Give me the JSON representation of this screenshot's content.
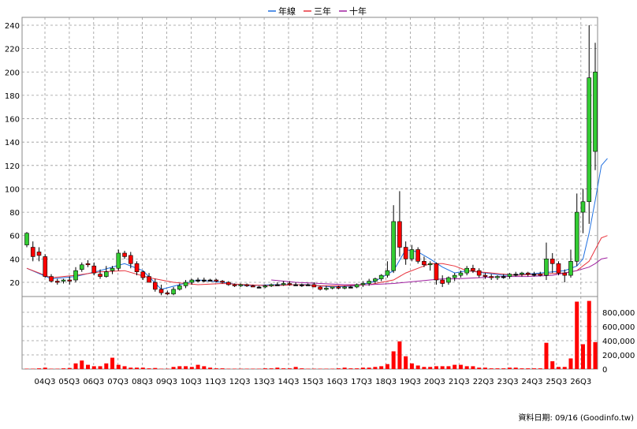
{
  "legend": {
    "items": [
      {
        "label": "年線",
        "color": "#1f6fe0"
      },
      {
        "label": "三年",
        "color": "#e8323c"
      },
      {
        "label": "十年",
        "color": "#a020a0"
      }
    ]
  },
  "footer": {
    "text": "資料日期: 09/16  (Goodinfo.tw)"
  },
  "colors": {
    "up_candle": "#33cc33",
    "down_candle": "#ff0000",
    "neutral_candle": "#000000",
    "volume_bar": "#ff0000",
    "grid": "#888888"
  },
  "chart_data": {
    "type": "candlestick",
    "x_tick_labels": [
      "04Q3",
      "05Q3",
      "06Q3",
      "07Q3",
      "08Q3",
      "09Q3",
      "10Q3",
      "11Q3",
      "12Q3",
      "13Q3",
      "14Q3",
      "15Q3",
      "16Q3",
      "17Q3",
      "18Q3",
      "19Q3",
      "20Q3",
      "21Q3",
      "22Q3",
      "23Q3",
      "24Q3",
      "25Q3",
      "26Q3"
    ],
    "price_axis": {
      "ylim": [
        0,
        240
      ],
      "ticks": [
        20,
        40,
        60,
        80,
        100,
        120,
        140,
        160,
        180,
        200,
        220,
        240
      ]
    },
    "volume_axis": {
      "ylim": [
        0,
        1000000
      ],
      "ticks": [
        0,
        200000,
        400000,
        600000,
        800000
      ],
      "tick_labels": [
        "0",
        "200,000",
        "400,000",
        "600,000",
        "800,000"
      ]
    },
    "grid": true,
    "legend_position": "top-center",
    "quarterly_ohlc": [
      [
        52,
        63,
        50,
        62
      ],
      [
        50,
        55,
        38,
        42
      ],
      [
        46,
        50,
        38,
        43
      ],
      [
        42,
        44,
        24,
        25
      ],
      [
        25,
        27,
        20,
        21
      ],
      [
        21,
        23,
        18,
        20
      ],
      [
        21,
        23,
        19,
        22
      ],
      [
        22,
        25,
        18,
        21
      ],
      [
        22,
        33,
        20,
        30
      ],
      [
        31,
        37,
        29,
        35
      ],
      [
        36,
        39,
        33,
        35
      ],
      [
        34,
        37,
        26,
        28
      ],
      [
        27,
        31,
        23,
        25
      ],
      [
        25,
        34,
        24,
        29
      ],
      [
        30,
        34,
        27,
        32
      ],
      [
        32,
        48,
        30,
        45
      ],
      [
        45,
        47,
        40,
        42
      ],
      [
        43,
        46,
        32,
        36
      ],
      [
        36,
        38,
        26,
        29
      ],
      [
        29,
        30,
        22,
        24
      ],
      [
        25,
        28,
        20,
        20
      ],
      [
        20,
        23,
        12,
        14
      ],
      [
        14,
        18,
        9,
        11
      ],
      [
        11,
        13,
        9,
        10
      ],
      [
        10,
        16,
        9,
        14
      ],
      [
        14,
        19,
        13,
        17
      ],
      [
        17,
        22,
        15,
        20
      ],
      [
        20,
        23,
        18,
        22
      ],
      [
        22,
        24,
        20,
        22
      ],
      [
        22,
        24,
        20,
        22
      ],
      [
        22,
        23,
        21,
        22
      ],
      [
        22,
        23,
        20,
        21
      ],
      [
        21,
        22,
        19,
        20
      ],
      [
        20,
        21,
        17,
        18
      ],
      [
        18,
        19,
        16,
        17
      ],
      [
        17,
        19,
        16,
        18
      ],
      [
        18,
        19,
        16,
        17
      ],
      [
        17,
        18,
        16,
        16
      ],
      [
        16,
        17,
        15,
        16
      ],
      [
        16,
        18,
        15,
        17
      ],
      [
        17,
        19,
        16,
        18
      ],
      [
        18,
        20,
        17,
        18
      ],
      [
        18,
        21,
        17,
        19
      ],
      [
        19,
        21,
        17,
        18
      ],
      [
        18,
        20,
        17,
        18
      ],
      [
        18,
        19,
        16,
        18
      ],
      [
        18,
        19,
        17,
        18
      ],
      [
        18,
        20,
        16,
        16
      ],
      [
        16,
        17,
        13,
        14
      ],
      [
        14,
        17,
        13,
        15
      ],
      [
        15,
        16,
        14,
        16
      ],
      [
        16,
        17,
        14,
        15
      ],
      [
        15,
        17,
        14,
        16
      ],
      [
        16,
        17,
        15,
        16
      ],
      [
        16,
        19,
        15,
        18
      ],
      [
        18,
        21,
        16,
        19
      ],
      [
        19,
        23,
        17,
        21
      ],
      [
        21,
        24,
        19,
        23
      ],
      [
        23,
        27,
        21,
        26
      ],
      [
        26,
        38,
        24,
        30
      ],
      [
        30,
        86,
        28,
        72
      ],
      [
        72,
        98,
        42,
        50
      ],
      [
        50,
        55,
        35,
        40
      ],
      [
        40,
        52,
        38,
        48
      ],
      [
        48,
        50,
        36,
        38
      ],
      [
        38,
        42,
        33,
        35
      ],
      [
        35,
        38,
        30,
        36
      ],
      [
        36,
        37,
        18,
        22
      ],
      [
        22,
        26,
        16,
        19
      ],
      [
        20,
        25,
        18,
        24
      ],
      [
        24,
        28,
        21,
        26
      ],
      [
        26,
        30,
        24,
        28
      ],
      [
        28,
        34,
        26,
        32
      ],
      [
        32,
        35,
        28,
        30
      ],
      [
        30,
        32,
        24,
        26
      ],
      [
        26,
        28,
        23,
        25
      ],
      [
        25,
        27,
        22,
        24
      ],
      [
        24,
        26,
        22,
        25
      ],
      [
        25,
        27,
        23,
        25
      ],
      [
        25,
        28,
        23,
        27
      ],
      [
        27,
        29,
        25,
        27
      ],
      [
        27,
        29,
        25,
        28
      ],
      [
        28,
        29,
        25,
        27
      ],
      [
        27,
        29,
        25,
        27
      ],
      [
        27,
        29,
        25,
        26
      ],
      [
        26,
        54,
        22,
        40
      ],
      [
        40,
        45,
        28,
        36
      ],
      [
        36,
        38,
        26,
        28
      ],
      [
        28,
        31,
        20,
        26
      ],
      [
        26,
        48,
        24,
        38
      ],
      [
        38,
        96,
        34,
        80
      ],
      [
        80,
        100,
        62,
        89
      ],
      [
        89,
        240,
        70,
        195
      ],
      [
        132,
        225,
        116,
        200
      ]
    ],
    "series": [
      {
        "name": "年線",
        "values": [
          null,
          null,
          null,
          null,
          null,
          null,
          null,
          null,
          null,
          null,
          null,
          null,
          null,
          null,
          null,
          null,
          null,
          null,
          null,
          null,
          null,
          null,
          null,
          null,
          null,
          null,
          null,
          null,
          null,
          null,
          null,
          null,
          null,
          null,
          null,
          null,
          null,
          null,
          null,
          null,
          null,
          null,
          null,
          null,
          null,
          null,
          null,
          null,
          null,
          null,
          null,
          null,
          null,
          null,
          null,
          null,
          null,
          null,
          null,
          null,
          null,
          null,
          null,
          null,
          null,
          null,
          null,
          null,
          null,
          null,
          null,
          null,
          null,
          null,
          null,
          null,
          null,
          null,
          null,
          null,
          null,
          null,
          null,
          null,
          null,
          null,
          null,
          null,
          null,
          null,
          null,
          null,
          null,
          null,
          null,
          null
        ],
        "smooth": [
          [
            0,
            32
          ],
          [
            4,
            23
          ],
          [
            8,
            25
          ],
          [
            12,
            30
          ],
          [
            16,
            36
          ],
          [
            19,
            30
          ],
          [
            22,
            14
          ],
          [
            25,
            18
          ],
          [
            28,
            22
          ],
          [
            32,
            20
          ],
          [
            36,
            17
          ],
          [
            40,
            18
          ],
          [
            46,
            18
          ],
          [
            50,
            16
          ],
          [
            54,
            17
          ],
          [
            57,
            21
          ],
          [
            60,
            30
          ],
          [
            62,
            48
          ],
          [
            64,
            46
          ],
          [
            66,
            40
          ],
          [
            68,
            33
          ],
          [
            70,
            28
          ],
          [
            72,
            30
          ],
          [
            75,
            28
          ],
          [
            78,
            26
          ],
          [
            82,
            27
          ],
          [
            86,
            29
          ],
          [
            88,
            30
          ],
          [
            90,
            34
          ],
          [
            91,
            40
          ],
          [
            92,
            62
          ],
          [
            93,
            90
          ],
          [
            94,
            120
          ],
          [
            95,
            126
          ]
        ]
      },
      {
        "name": "三年",
        "smooth": [
          [
            0,
            32
          ],
          [
            4,
            24
          ],
          [
            8,
            26
          ],
          [
            12,
            29
          ],
          [
            16,
            30
          ],
          [
            20,
            24
          ],
          [
            24,
            20
          ],
          [
            28,
            18
          ],
          [
            32,
            19
          ],
          [
            36,
            18
          ],
          [
            40,
            17
          ],
          [
            44,
            18
          ],
          [
            48,
            17
          ],
          [
            52,
            17
          ],
          [
            56,
            18
          ],
          [
            60,
            22
          ],
          [
            62,
            28
          ],
          [
            64,
            32
          ],
          [
            66,
            36
          ],
          [
            68,
            36
          ],
          [
            70,
            34
          ],
          [
            72,
            30
          ],
          [
            76,
            28
          ],
          [
            80,
            26
          ],
          [
            84,
            27
          ],
          [
            88,
            28
          ],
          [
            90,
            30
          ],
          [
            92,
            38
          ],
          [
            93,
            48
          ],
          [
            94,
            58
          ],
          [
            95,
            60
          ]
        ]
      },
      {
        "name": "十年",
        "smooth": [
          [
            40,
            22
          ],
          [
            44,
            20
          ],
          [
            48,
            19
          ],
          [
            52,
            18
          ],
          [
            56,
            18
          ],
          [
            60,
            19
          ],
          [
            62,
            20
          ],
          [
            64,
            21
          ],
          [
            66,
            22
          ],
          [
            68,
            23
          ],
          [
            70,
            23
          ],
          [
            74,
            24
          ],
          [
            78,
            25
          ],
          [
            82,
            25
          ],
          [
            86,
            26
          ],
          [
            88,
            28
          ],
          [
            90,
            30
          ],
          [
            92,
            33
          ],
          [
            93,
            36
          ],
          [
            94,
            40
          ],
          [
            95,
            41
          ]
        ]
      }
    ],
    "volume": [
      5000,
      5000,
      10000,
      20000,
      5000,
      5000,
      10000,
      15000,
      80000,
      120000,
      60000,
      40000,
      40000,
      80000,
      160000,
      60000,
      40000,
      20000,
      20000,
      20000,
      10000,
      15000,
      5000,
      5000,
      30000,
      40000,
      40000,
      30000,
      60000,
      40000,
      20000,
      10000,
      10000,
      5000,
      5000,
      5000,
      5000,
      5000,
      5000,
      10000,
      10000,
      20000,
      10000,
      10000,
      30000,
      10000,
      5000,
      5000,
      5000,
      5000,
      5000,
      10000,
      20000,
      10000,
      10000,
      20000,
      20000,
      30000,
      40000,
      70000,
      250000,
      390000,
      180000,
      80000,
      50000,
      30000,
      30000,
      40000,
      40000,
      40000,
      60000,
      60000,
      40000,
      40000,
      20000,
      20000,
      10000,
      10000,
      10000,
      20000,
      20000,
      10000,
      10000,
      10000,
      10000,
      370000,
      110000,
      30000,
      30000,
      150000,
      950000,
      350000,
      960000,
      380000
    ]
  }
}
